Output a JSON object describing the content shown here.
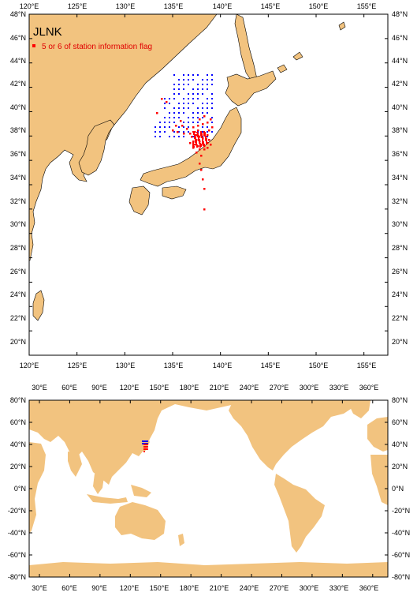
{
  "top_map": {
    "title": "JLNK",
    "legend_label": "5 or 6 of station information flag",
    "lon_ticks": [
      "120°E",
      "125°E",
      "130°E",
      "135°E",
      "140°E",
      "145°E",
      "150°E",
      "155°E"
    ],
    "lat_ticks": [
      "48°N",
      "46°N",
      "44°N",
      "42°N",
      "40°N",
      "38°N",
      "36°N",
      "34°N",
      "32°N",
      "30°N",
      "28°N",
      "26°N",
      "24°N",
      "22°N",
      "20°N"
    ],
    "colors": {
      "land": "#f2c37f",
      "normal_station": "#0000ff",
      "flagged_station": "#ff0000",
      "water": "#ffffff"
    }
  },
  "bottom_map": {
    "lon_ticks": [
      "30°E",
      "60°E",
      "90°E",
      "120°E",
      "150°E",
      "180°E",
      "210°E",
      "240°E",
      "270°E",
      "300°E",
      "330°E",
      "360°E"
    ],
    "lat_ticks": [
      "80°N",
      "60°N",
      "40°N",
      "20°N",
      "0°N",
      "-20°N",
      "-40°N",
      "-60°N",
      "-80°N"
    ]
  }
}
